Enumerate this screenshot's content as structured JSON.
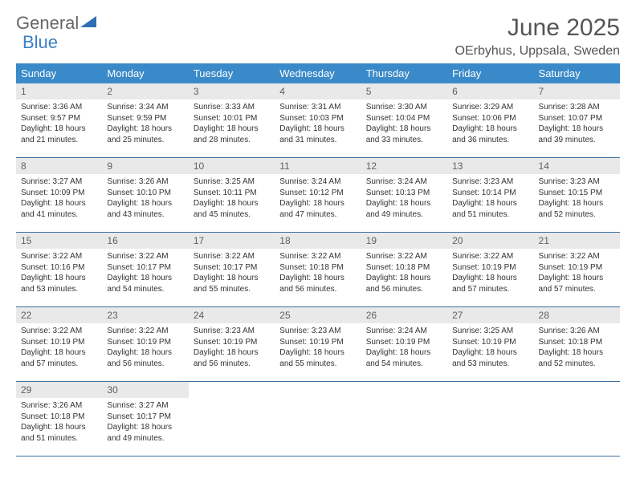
{
  "logo": {
    "text1": "General",
    "text2": "Blue",
    "icon": "triangle-icon",
    "colors": {
      "general": "#666666",
      "blue": "#3a7fc4",
      "triangle": "#2e6fb3"
    }
  },
  "title": "June 2025",
  "location": "OErbyhus, Uppsala, Sweden",
  "theme": {
    "header_bg": "#3a8ac9",
    "header_text": "#ffffff",
    "daynum_bg": "#e9e9e9",
    "daynum_text": "#606060",
    "rule": "#3a6fa0",
    "body_text": "#333333"
  },
  "weekdays": [
    "Sunday",
    "Monday",
    "Tuesday",
    "Wednesday",
    "Thursday",
    "Friday",
    "Saturday"
  ],
  "weeks": [
    [
      {
        "n": "1",
        "sr": "3:36 AM",
        "ss": "9:57 PM",
        "dl": "18 hours and 21 minutes."
      },
      {
        "n": "2",
        "sr": "3:34 AM",
        "ss": "9:59 PM",
        "dl": "18 hours and 25 minutes."
      },
      {
        "n": "3",
        "sr": "3:33 AM",
        "ss": "10:01 PM",
        "dl": "18 hours and 28 minutes."
      },
      {
        "n": "4",
        "sr": "3:31 AM",
        "ss": "10:03 PM",
        "dl": "18 hours and 31 minutes."
      },
      {
        "n": "5",
        "sr": "3:30 AM",
        "ss": "10:04 PM",
        "dl": "18 hours and 33 minutes."
      },
      {
        "n": "6",
        "sr": "3:29 AM",
        "ss": "10:06 PM",
        "dl": "18 hours and 36 minutes."
      },
      {
        "n": "7",
        "sr": "3:28 AM",
        "ss": "10:07 PM",
        "dl": "18 hours and 39 minutes."
      }
    ],
    [
      {
        "n": "8",
        "sr": "3:27 AM",
        "ss": "10:09 PM",
        "dl": "18 hours and 41 minutes."
      },
      {
        "n": "9",
        "sr": "3:26 AM",
        "ss": "10:10 PM",
        "dl": "18 hours and 43 minutes."
      },
      {
        "n": "10",
        "sr": "3:25 AM",
        "ss": "10:11 PM",
        "dl": "18 hours and 45 minutes."
      },
      {
        "n": "11",
        "sr": "3:24 AM",
        "ss": "10:12 PM",
        "dl": "18 hours and 47 minutes."
      },
      {
        "n": "12",
        "sr": "3:24 AM",
        "ss": "10:13 PM",
        "dl": "18 hours and 49 minutes."
      },
      {
        "n": "13",
        "sr": "3:23 AM",
        "ss": "10:14 PM",
        "dl": "18 hours and 51 minutes."
      },
      {
        "n": "14",
        "sr": "3:23 AM",
        "ss": "10:15 PM",
        "dl": "18 hours and 52 minutes."
      }
    ],
    [
      {
        "n": "15",
        "sr": "3:22 AM",
        "ss": "10:16 PM",
        "dl": "18 hours and 53 minutes."
      },
      {
        "n": "16",
        "sr": "3:22 AM",
        "ss": "10:17 PM",
        "dl": "18 hours and 54 minutes."
      },
      {
        "n": "17",
        "sr": "3:22 AM",
        "ss": "10:17 PM",
        "dl": "18 hours and 55 minutes."
      },
      {
        "n": "18",
        "sr": "3:22 AM",
        "ss": "10:18 PM",
        "dl": "18 hours and 56 minutes."
      },
      {
        "n": "19",
        "sr": "3:22 AM",
        "ss": "10:18 PM",
        "dl": "18 hours and 56 minutes."
      },
      {
        "n": "20",
        "sr": "3:22 AM",
        "ss": "10:19 PM",
        "dl": "18 hours and 57 minutes."
      },
      {
        "n": "21",
        "sr": "3:22 AM",
        "ss": "10:19 PM",
        "dl": "18 hours and 57 minutes."
      }
    ],
    [
      {
        "n": "22",
        "sr": "3:22 AM",
        "ss": "10:19 PM",
        "dl": "18 hours and 57 minutes."
      },
      {
        "n": "23",
        "sr": "3:22 AM",
        "ss": "10:19 PM",
        "dl": "18 hours and 56 minutes."
      },
      {
        "n": "24",
        "sr": "3:23 AM",
        "ss": "10:19 PM",
        "dl": "18 hours and 56 minutes."
      },
      {
        "n": "25",
        "sr": "3:23 AM",
        "ss": "10:19 PM",
        "dl": "18 hours and 55 minutes."
      },
      {
        "n": "26",
        "sr": "3:24 AM",
        "ss": "10:19 PM",
        "dl": "18 hours and 54 minutes."
      },
      {
        "n": "27",
        "sr": "3:25 AM",
        "ss": "10:19 PM",
        "dl": "18 hours and 53 minutes."
      },
      {
        "n": "28",
        "sr": "3:26 AM",
        "ss": "10:18 PM",
        "dl": "18 hours and 52 minutes."
      }
    ],
    [
      {
        "n": "29",
        "sr": "3:26 AM",
        "ss": "10:18 PM",
        "dl": "18 hours and 51 minutes."
      },
      {
        "n": "30",
        "sr": "3:27 AM",
        "ss": "10:17 PM",
        "dl": "18 hours and 49 minutes."
      },
      null,
      null,
      null,
      null,
      null
    ]
  ],
  "labels": {
    "sunrise": "Sunrise: ",
    "sunset": "Sunset: ",
    "daylight": "Daylight: "
  }
}
